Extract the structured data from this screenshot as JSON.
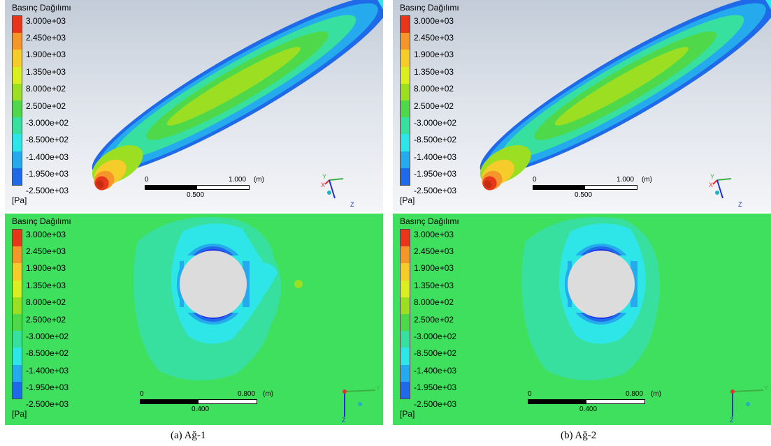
{
  "legend": {
    "title": "Basınç Dağılımı",
    "unit": "[Pa]",
    "ticks": [
      "3.000e+03",
      "2.450e+03",
      "1.900e+03",
      "1.350e+03",
      "8.000e+02",
      "2.500e+02",
      "-3.000e+02",
      "-8.500e+02",
      "-1.400e+03",
      "-1.950e+03",
      "-2.500e+03"
    ],
    "colors": [
      "#e8361a",
      "#f5962a",
      "#f5cc2a",
      "#dbee22",
      "#9cdf22",
      "#4fd94a",
      "#38e0a0",
      "#2ee6e8",
      "#25aaee",
      "#1f6ae8",
      "#1e2ee6"
    ]
  },
  "scalebar_top": {
    "zero": "0",
    "max": "1.000",
    "unit": "(m)",
    "mid": "0.500"
  },
  "scalebar_bottom": {
    "zero": "0",
    "max": "0.800",
    "unit": "(m)",
    "mid": "0.400"
  },
  "triad_top": {
    "y": "Y",
    "x": "X",
    "z": "Z"
  },
  "triad_bottom": {
    "y": "Y",
    "z": "Z"
  },
  "captions": {
    "left": "(a) Ağ-1",
    "right": "(b) Ağ-2"
  },
  "colors": {
    "background_gradient_top": "#c2ccd8",
    "bottom_field": "#3fe05d",
    "hole": "#dcdcdc"
  }
}
